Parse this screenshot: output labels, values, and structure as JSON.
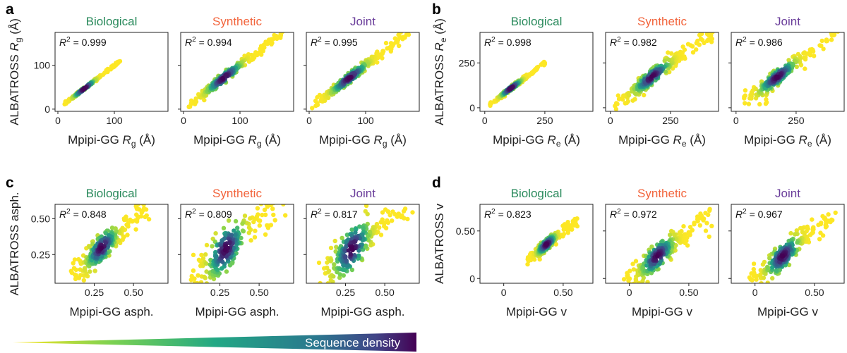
{
  "colors": {
    "biological": "#2a8a5c",
    "synthetic": "#f2643c",
    "joint": "#6a3d9a"
  },
  "legend": {
    "label": "Sequence density"
  },
  "panels": [
    {
      "letter": "a",
      "ylabel_main": "ALBATROSS",
      "ylabel_sym": "R",
      "ylabel_sub": "g",
      "ylabel_unit": " (Å)",
      "xlabel_main": "Mpipi-GG ",
      "xlabel_sym": "R",
      "xlabel_sub": "g",
      "xlabel_unit": " (Å)",
      "xticks": [
        0,
        100
      ],
      "yticks": [
        0,
        100
      ],
      "xlim": [
        -5,
        195
      ],
      "ylim": [
        -5,
        175
      ],
      "plots": [
        {
          "title": "Biological",
          "series_key": "biological",
          "r2": "= 0.999",
          "x_range": [
            8,
            110
          ],
          "spread": 0.015,
          "scatter_lo": 0.0
        },
        {
          "title": "Synthetic",
          "series_key": "synthetic",
          "r2": "= 0.994",
          "x_range": [
            5,
            180
          ],
          "spread": 0.035,
          "scatter_lo": 0.0
        },
        {
          "title": "Joint",
          "series_key": "joint",
          "r2": "= 0.995",
          "x_range": [
            5,
            180
          ],
          "spread": 0.035,
          "scatter_lo": 0.0
        }
      ]
    },
    {
      "letter": "b",
      "ylabel_main": "ALBATROSS",
      "ylabel_sym": "R",
      "ylabel_sub": "e",
      "ylabel_unit": " (Å)",
      "xlabel_main": "Mpipi-GG ",
      "xlabel_sym": "R",
      "xlabel_sub": "e",
      "xlabel_unit": " (Å)",
      "xticks": [
        0,
        250
      ],
      "yticks": [
        0,
        250
      ],
      "xlim": [
        -20,
        450
      ],
      "ylim": [
        -20,
        420
      ],
      "plots": [
        {
          "title": "Biological",
          "series_key": "biological",
          "r2": "= 0.998",
          "x_range": [
            20,
            255
          ],
          "spread": 0.025,
          "scatter_lo": 0.0
        },
        {
          "title": "Synthetic",
          "series_key": "synthetic",
          "r2": "= 0.982",
          "x_range": [
            15,
            430
          ],
          "spread": 0.05,
          "scatter_lo": 0.15
        },
        {
          "title": "Joint",
          "series_key": "joint",
          "r2": "= 0.986",
          "x_range": [
            15,
            430
          ],
          "spread": 0.05,
          "scatter_lo": 0.15
        }
      ]
    },
    {
      "letter": "c",
      "ylabel_main": "ALBATROSS asph.",
      "ylabel_sym": "",
      "ylabel_sub": "",
      "ylabel_unit": "",
      "xlabel_main": "Mpipi-GG asph.",
      "xlabel_sym": "",
      "xlabel_sub": "",
      "xlabel_unit": "",
      "xticks": [
        0.25,
        0.5
      ],
      "yticks": [
        0.25,
        0.5
      ],
      "xlim": [
        0.0,
        0.72
      ],
      "ylim": [
        0.05,
        0.6
      ],
      "plots": [
        {
          "title": "Biological",
          "series_key": "biological",
          "r2": "= 0.848",
          "x_range": [
            0.1,
            0.62
          ],
          "spread": 0.09,
          "scatter_lo": 0.0
        },
        {
          "title": "Synthetic",
          "series_key": "synthetic",
          "r2": "= 0.809",
          "x_range": [
            0.05,
            0.68
          ],
          "spread": 0.12,
          "scatter_lo": 0.0
        },
        {
          "title": "Joint",
          "series_key": "joint",
          "r2": "= 0.817",
          "x_range": [
            0.05,
            0.68
          ],
          "spread": 0.12,
          "scatter_lo": 0.0
        }
      ]
    },
    {
      "letter": "d",
      "ylabel_main": "ALBATROSS v",
      "ylabel_sym": "",
      "ylabel_sub": "",
      "ylabel_unit": "",
      "xlabel_main": "Mpipi-GG v",
      "xlabel_sym": "",
      "xlabel_sub": "",
      "xlabel_unit": "",
      "xticks": [
        0,
        0.5
      ],
      "yticks": [
        0,
        0.5
      ],
      "xlim": [
        -0.2,
        0.75
      ],
      "ylim": [
        -0.05,
        0.78
      ],
      "plots": [
        {
          "title": "Biological",
          "series_key": "biological",
          "r2": "= 0.823",
          "x_range": [
            0.2,
            0.62
          ],
          "spread": 0.07,
          "scatter_lo": 0.0
        },
        {
          "title": "Synthetic",
          "series_key": "synthetic",
          "r2": "= 0.972",
          "x_range": [
            -0.05,
            0.7
          ],
          "spread": 0.09,
          "scatter_lo": 0.0
        },
        {
          "title": "Joint",
          "series_key": "joint",
          "r2": "= 0.967",
          "x_range": [
            -0.05,
            0.7
          ],
          "spread": 0.09,
          "scatter_lo": 0.0
        }
      ]
    }
  ],
  "chart_data": [
    {
      "type": "scatter",
      "panel": "a",
      "title": "Biological",
      "xlabel": "Mpipi-GG Rg (Å)",
      "ylabel": "ALBATROSS Rg (Å)",
      "annotation": "R2 = 0.999",
      "xlim": [
        -5,
        195
      ],
      "ylim": [
        -5,
        175
      ],
      "x_range": [
        8,
        110
      ]
    },
    {
      "type": "scatter",
      "panel": "a",
      "title": "Synthetic",
      "xlabel": "Mpipi-GG Rg (Å)",
      "ylabel": "ALBATROSS Rg (Å)",
      "annotation": "R2 = 0.994",
      "xlim": [
        -5,
        195
      ],
      "ylim": [
        -5,
        175
      ],
      "x_range": [
        5,
        180
      ]
    },
    {
      "type": "scatter",
      "panel": "a",
      "title": "Joint",
      "xlabel": "Mpipi-GG Rg (Å)",
      "ylabel": "ALBATROSS Rg (Å)",
      "annotation": "R2 = 0.995",
      "xlim": [
        -5,
        195
      ],
      "ylim": [
        -5,
        175
      ],
      "x_range": [
        5,
        180
      ]
    },
    {
      "type": "scatter",
      "panel": "b",
      "title": "Biological",
      "xlabel": "Mpipi-GG Re (Å)",
      "ylabel": "ALBATROSS Re (Å)",
      "annotation": "R2 = 0.998",
      "xlim": [
        -20,
        450
      ],
      "ylim": [
        -20,
        420
      ],
      "x_range": [
        20,
        255
      ]
    },
    {
      "type": "scatter",
      "panel": "b",
      "title": "Synthetic",
      "xlabel": "Mpipi-GG Re (Å)",
      "ylabel": "ALBATROSS Re (Å)",
      "annotation": "R2 = 0.982",
      "xlim": [
        -20,
        450
      ],
      "ylim": [
        -20,
        420
      ],
      "x_range": [
        15,
        430
      ]
    },
    {
      "type": "scatter",
      "panel": "b",
      "title": "Joint",
      "xlabel": "Mpipi-GG Re (Å)",
      "ylabel": "ALBATROSS Re (Å)",
      "annotation": "R2 = 0.986",
      "xlim": [
        -20,
        450
      ],
      "ylim": [
        -20,
        420
      ],
      "x_range": [
        15,
        430
      ]
    },
    {
      "type": "scatter",
      "panel": "c",
      "title": "Biological",
      "xlabel": "Mpipi-GG asph.",
      "ylabel": "ALBATROSS asph.",
      "annotation": "R2 = 0.848",
      "xlim": [
        0.0,
        0.72
      ],
      "ylim": [
        0.05,
        0.6
      ],
      "x_range": [
        0.1,
        0.62
      ]
    },
    {
      "type": "scatter",
      "panel": "c",
      "title": "Synthetic",
      "xlabel": "Mpipi-GG asph.",
      "ylabel": "ALBATROSS asph.",
      "annotation": "R2 = 0.809",
      "xlim": [
        0.0,
        0.72
      ],
      "ylim": [
        0.05,
        0.6
      ],
      "x_range": [
        0.05,
        0.68
      ]
    },
    {
      "type": "scatter",
      "panel": "c",
      "title": "Joint",
      "xlabel": "Mpipi-GG asph.",
      "ylabel": "ALBATROSS asph.",
      "annotation": "R2 = 0.817",
      "xlim": [
        0.0,
        0.72
      ],
      "ylim": [
        0.05,
        0.6
      ],
      "x_range": [
        0.05,
        0.68
      ]
    },
    {
      "type": "scatter",
      "panel": "d",
      "title": "Biological",
      "xlabel": "Mpipi-GG v",
      "ylabel": "ALBATROSS v",
      "annotation": "R2 = 0.823",
      "xlim": [
        -0.2,
        0.75
      ],
      "ylim": [
        -0.05,
        0.78
      ],
      "x_range": [
        0.2,
        0.62
      ]
    },
    {
      "type": "scatter",
      "panel": "d",
      "title": "Synthetic",
      "xlabel": "Mpipi-GG v",
      "ylabel": "ALBATROSS v",
      "annotation": "R2 = 0.972",
      "xlim": [
        -0.2,
        0.75
      ],
      "ylim": [
        -0.05,
        0.78
      ],
      "x_range": [
        -0.05,
        0.7
      ]
    },
    {
      "type": "scatter",
      "panel": "d",
      "title": "Joint",
      "xlabel": "Mpipi-GG v",
      "ylabel": "ALBATROSS v",
      "annotation": "R2 = 0.967",
      "xlim": [
        -0.2,
        0.75
      ],
      "ylim": [
        -0.05,
        0.78
      ],
      "x_range": [
        -0.05,
        0.7
      ]
    }
  ]
}
